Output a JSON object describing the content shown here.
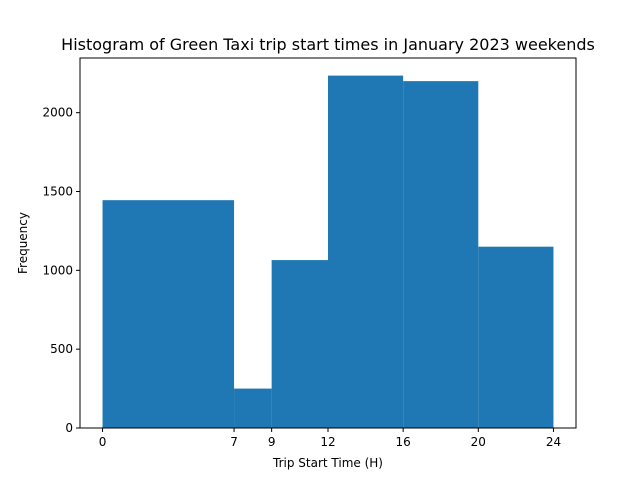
{
  "chart_data": {
    "type": "bar",
    "title": "Histogram of Green Taxi trip start times in January 2023 weekends",
    "xlabel": "Trip Start Time (H)",
    "ylabel": "Frequency",
    "bins": [
      {
        "start": 0,
        "end": 7,
        "value": 1445
      },
      {
        "start": 7,
        "end": 9,
        "value": 250
      },
      {
        "start": 9,
        "end": 12,
        "value": 1065
      },
      {
        "start": 12,
        "end": 16,
        "value": 2235
      },
      {
        "start": 16,
        "end": 20,
        "value": 2200
      },
      {
        "start": 20,
        "end": 24,
        "value": 1150
      }
    ],
    "xticks": [
      0,
      7,
      9,
      12,
      16,
      20,
      24
    ],
    "yticks": [
      0,
      500,
      1000,
      1500,
      2000
    ],
    "xlim": [
      -1.2,
      25.2
    ],
    "ylim": [
      0,
      2346.75
    ],
    "grid": false,
    "bar_color": "#1f77b4"
  }
}
